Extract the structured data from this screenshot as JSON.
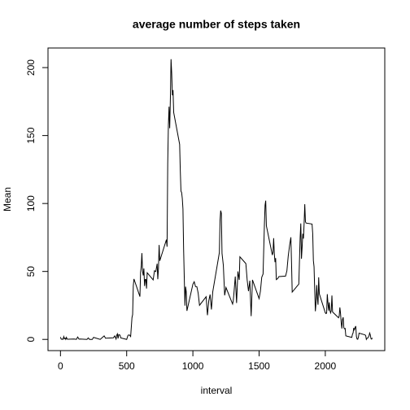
{
  "chart_data": {
    "type": "line",
    "title": "average number of steps taken",
    "x_label": "interval",
    "y_label": "Mean",
    "x": [
      0,
      5,
      10,
      15,
      20,
      25,
      30,
      35,
      40,
      45,
      50,
      55,
      100,
      110,
      120,
      130,
      140,
      150,
      200,
      210,
      220,
      230,
      240,
      250,
      300,
      330,
      340,
      400,
      410,
      420,
      425,
      430,
      435,
      440,
      450,
      455,
      500,
      510,
      520,
      530,
      540,
      545,
      550,
      555,
      600,
      605,
      610,
      615,
      620,
      625,
      630,
      635,
      640,
      645,
      650,
      655,
      700,
      710,
      720,
      730,
      735,
      740,
      745,
      750,
      800,
      805,
      810,
      815,
      820,
      825,
      830,
      835,
      840,
      845,
      850,
      855,
      900,
      905,
      910,
      915,
      920,
      925,
      930,
      935,
      940,
      945,
      950,
      955,
      1000,
      1010,
      1020,
      1030,
      1040,
      1050,
      1100,
      1110,
      1120,
      1130,
      1140,
      1150,
      1200,
      1205,
      1210,
      1215,
      1220,
      1230,
      1240,
      1250,
      1300,
      1305,
      1310,
      1320,
      1330,
      1340,
      1350,
      1355,
      1400,
      1410,
      1420,
      1430,
      1440,
      1450,
      1500,
      1510,
      1520,
      1530,
      1540,
      1545,
      1550,
      1555,
      1600,
      1605,
      1610,
      1615,
      1620,
      1625,
      1630,
      1640,
      1650,
      1700,
      1710,
      1720,
      1730,
      1740,
      1745,
      1750,
      1800,
      1805,
      1810,
      1815,
      1820,
      1825,
      1830,
      1835,
      1840,
      1845,
      1850,
      1855,
      1900,
      1905,
      1910,
      1915,
      1920,
      1925,
      1930,
      1935,
      1940,
      1945,
      1950,
      1955,
      2000,
      2005,
      2010,
      2015,
      2020,
      2025,
      2030,
      2035,
      2040,
      2045,
      2050,
      2055,
      2100,
      2105,
      2110,
      2115,
      2120,
      2125,
      2130,
      2135,
      2140,
      2145,
      2150,
      2155,
      2200,
      2205,
      2210,
      2215,
      2220,
      2225,
      2230,
      2235,
      2240,
      2245,
      2250,
      2255,
      2300,
      2305,
      2310,
      2315,
      2320,
      2325,
      2330,
      2335,
      2340,
      2345,
      2350,
      2355
    ],
    "values": [
      1.7,
      0.3,
      0.1,
      0.2,
      0.1,
      2.1,
      0.5,
      0.9,
      0,
      1.5,
      0.3,
      0.1,
      0.3,
      0.2,
      0,
      1.8,
      0.2,
      0.3,
      0,
      1.1,
      0,
      0,
      0,
      1.5,
      0,
      2.6,
      0.9,
      1.2,
      2.6,
      0.3,
      3.1,
      4.1,
      0.7,
      3.5,
      3.1,
      1.1,
      0,
      3,
      3.3,
      2.1,
      16,
      18.3,
      39.5,
      44.5,
      31.5,
      49.3,
      53.8,
      63.5,
      50,
      47.1,
      52.2,
      39.3,
      44.1,
      44.2,
      37.4,
      49,
      43.8,
      50.5,
      49.9,
      55.7,
      44.3,
      52.3,
      69.5,
      57.8,
      73.4,
      68.2,
      129.4,
      157.5,
      171.2,
      155.4,
      177.3,
      206.2,
      195.9,
      179.6,
      183.4,
      167,
      143.5,
      124,
      109.1,
      108.1,
      103.7,
      95.9,
      66.2,
      45.2,
      24.8,
      38.8,
      35,
      21,
      40.6,
      42.4,
      38.9,
      38.8,
      34,
      25.1,
      31.4,
      17.8,
      28.4,
      33,
      22,
      35,
      63.9,
      87.6,
      94.8,
      92.8,
      63.4,
      54.5,
      32.4,
      38.2,
      26,
      28.5,
      34,
      46.3,
      26.8,
      50,
      43.8,
      60.8,
      55.8,
      43.6,
      35.5,
      43.2,
      17.1,
      43.8,
      30,
      35.5,
      45.7,
      48.1,
      84.2,
      98.7,
      102.1,
      83.6,
      62.1,
      64.1,
      74.5,
      63.2,
      56.9,
      59.8,
      44,
      44.7,
      46.2,
      46.6,
      50.5,
      61.3,
      68.9,
      75.1,
      56.5,
      34.8,
      40.7,
      58,
      74.7,
      85.3,
      59.3,
      67.8,
      77.7,
      74.2,
      85.3,
      99.5,
      86.6,
      85.6,
      84.9,
      77.8,
      58,
      53.4,
      36.3,
      20.7,
      27.4,
      40,
      30.2,
      25.5,
      45.7,
      33.5,
      19.6,
      19,
      19.3,
      33.3,
      26.8,
      21.2,
      27.3,
      21.3,
      19.5,
      21.3,
      32.3,
      20.2,
      15.9,
      17.2,
      23.5,
      19.2,
      12.5,
      8,
      14.7,
      16.3,
      8.7,
      7.8,
      8.1,
      2.6,
      1.5,
      3.7,
      4.8,
      8.5,
      7.1,
      8.7,
      9.8,
      2.2,
      0.3,
      0.1,
      1.6,
      4.6,
      3.3,
      2.8,
      0,
      0.8,
      1,
      1.6,
      2.6,
      4.7,
      3.3,
      0.6,
      0.2,
      1.1
    ],
    "color": "#000000",
    "xlim": [
      -94.2,
      2449.2
    ],
    "xticks": [
      0,
      500,
      1000,
      1500,
      2000
    ],
    "ylim": [
      -8.25,
      214.42
    ],
    "yticks": [
      0,
      50,
      100,
      150,
      200
    ],
    "grid": false
  }
}
